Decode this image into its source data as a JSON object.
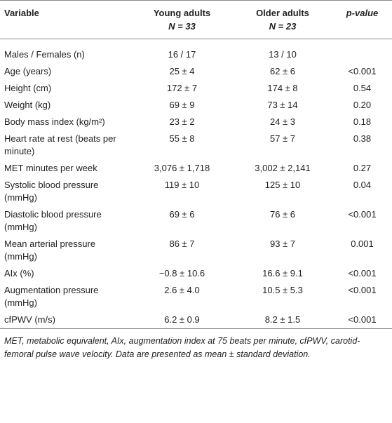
{
  "header": {
    "variable": "Variable",
    "young_title": "Young adults",
    "young_n": "N = 33",
    "older_title": "Older adults",
    "older_n": "N = 23",
    "p_value": "p-value"
  },
  "table": {
    "rows": [
      [
        "Males / Females (n)",
        "16 / 17",
        "13 / 10",
        ""
      ],
      [
        "Age (years)",
        "25 ± 4",
        "62 ± 6",
        "<0.001"
      ],
      [
        "Height (cm)",
        "172 ± 7",
        "174 ± 8",
        "0.54"
      ],
      [
        "Weight (kg)",
        "69 ± 9",
        "73 ± 14",
        "0.20"
      ],
      [
        "Body mass index (kg/m²)",
        "23 ± 2",
        "24 ± 3",
        "0.18"
      ],
      [
        "Heart rate at rest (beats per minute)",
        "55 ± 8",
        "57 ± 7",
        "0.38"
      ],
      [
        "MET minutes per week",
        "3,076 ± 1,718",
        "3,002 ± 2,141",
        "0.27"
      ],
      [
        "Systolic blood pressure (mmHg)",
        "119 ± 10",
        "125 ± 10",
        "0.04"
      ],
      [
        "Diastolic blood pressure (mmHg)",
        "69 ± 6",
        "76 ± 6",
        "<0.001"
      ],
      [
        "Mean arterial pressure (mmHg)",
        "86 ± 7",
        "93 ± 7",
        "0.001"
      ],
      [
        "AIx (%)",
        "−0.8 ± 10.6",
        "16.6 ± 9.1",
        "<0.001"
      ],
      [
        "Augmentation pressure (mmHg)",
        "2.6 ± 4.0",
        "10.5 ± 5.3",
        "<0.001"
      ],
      [
        "cfPWV (m/s)",
        "6.2 ± 0.9",
        "8.2 ± 1.5",
        "<0.001"
      ]
    ]
  },
  "footnote": "MET, metabolic equivalent, AIx, augmentation index at 75 beats per minute, cfPWV, carotid-femoral pulse wave velocity. Data are presented as mean ± standard deviation."
}
